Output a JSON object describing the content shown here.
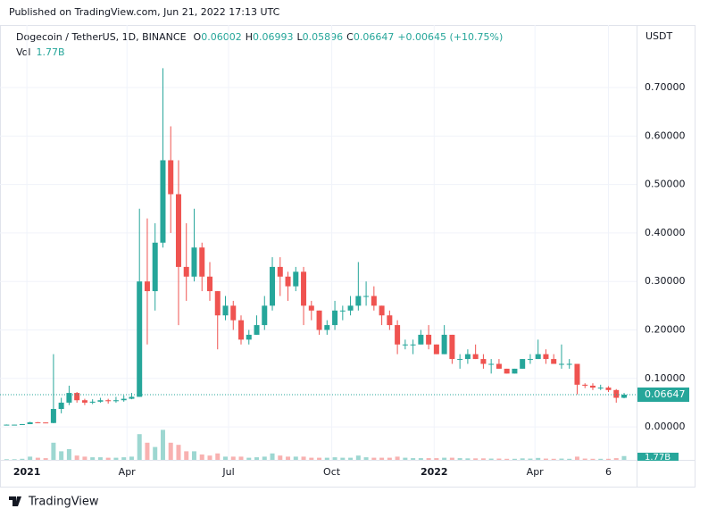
{
  "chart_data": {
    "type": "candlestick",
    "published": "Published on TradingView.com, Jun 21, 2022 17:13 UTC",
    "symbol": "Dogecoin / TetherUS, 1D, BINANCE",
    "ohlc_header": [
      {
        "label": "O",
        "value": 0.06002
      },
      {
        "label": "H",
        "value": 0.06993
      },
      {
        "label": "L",
        "value": 0.05896
      },
      {
        "label": "C",
        "value": 0.06647
      }
    ],
    "change_label": "+0.00645 (+10.75%)",
    "volume_title": "Vol",
    "volume_header": {
      "value": 1.77,
      "label": "1.77B"
    },
    "currency": "USDT",
    "brand": "TradingView",
    "last_price": 0.06647,
    "up_color": "#26a69a",
    "down_color": "#ef5350",
    "grid": true,
    "open": [
      0.0045,
      0.0046,
      0.0046,
      0.0057,
      0.0095,
      0.0091,
      0.008,
      0.037,
      0.05,
      0.07,
      0.055,
      0.05,
      0.052,
      0.055,
      0.053,
      0.055,
      0.058,
      0.062,
      0.3,
      0.28,
      0.38,
      0.55,
      0.48,
      0.33,
      0.31,
      0.37,
      0.31,
      0.28,
      0.23,
      0.25,
      0.22,
      0.18,
      0.19,
      0.21,
      0.25,
      0.33,
      0.31,
      0.29,
      0.32,
      0.25,
      0.24,
      0.2,
      0.21,
      0.24,
      0.24,
      0.25,
      0.27,
      0.27,
      0.25,
      0.23,
      0.21,
      0.17,
      0.17,
      0.17,
      0.19,
      0.17,
      0.15,
      0.19,
      0.14,
      0.14,
      0.15,
      0.14,
      0.13,
      0.13,
      0.12,
      0.11,
      0.12,
      0.14,
      0.14,
      0.15,
      0.14,
      0.13,
      0.13,
      0.13,
      0.087,
      0.085,
      0.081,
      0.081,
      0.076,
      0.06
    ],
    "high": [
      0.005,
      0.0048,
      0.006,
      0.0105,
      0.01,
      0.0092,
      0.15,
      0.06,
      0.085,
      0.072,
      0.058,
      0.057,
      0.06,
      0.058,
      0.062,
      0.065,
      0.07,
      0.45,
      0.43,
      0.42,
      0.74,
      0.62,
      0.55,
      0.42,
      0.45,
      0.38,
      0.34,
      0.28,
      0.27,
      0.26,
      0.23,
      0.2,
      0.23,
      0.27,
      0.35,
      0.35,
      0.32,
      0.33,
      0.33,
      0.26,
      0.24,
      0.22,
      0.26,
      0.25,
      0.27,
      0.34,
      0.3,
      0.29,
      0.25,
      0.24,
      0.22,
      0.18,
      0.18,
      0.2,
      0.21,
      0.17,
      0.21,
      0.19,
      0.15,
      0.16,
      0.17,
      0.15,
      0.14,
      0.14,
      0.12,
      0.12,
      0.14,
      0.15,
      0.18,
      0.16,
      0.15,
      0.17,
      0.14,
      0.13,
      0.09,
      0.09,
      0.087,
      0.084,
      0.078,
      0.06993
    ],
    "low": [
      0.0043,
      0.0044,
      0.0045,
      0.0056,
      0.0082,
      0.0075,
      0.0075,
      0.028,
      0.045,
      0.05,
      0.045,
      0.047,
      0.05,
      0.048,
      0.05,
      0.052,
      0.057,
      0.062,
      0.17,
      0.24,
      0.37,
      0.4,
      0.21,
      0.26,
      0.3,
      0.28,
      0.26,
      0.16,
      0.22,
      0.2,
      0.17,
      0.17,
      0.19,
      0.2,
      0.24,
      0.27,
      0.26,
      0.28,
      0.21,
      0.22,
      0.19,
      0.19,
      0.2,
      0.22,
      0.23,
      0.24,
      0.25,
      0.24,
      0.21,
      0.2,
      0.15,
      0.16,
      0.15,
      0.17,
      0.16,
      0.15,
      0.15,
      0.13,
      0.12,
      0.13,
      0.14,
      0.12,
      0.11,
      0.12,
      0.11,
      0.11,
      0.12,
      0.13,
      0.14,
      0.13,
      0.13,
      0.12,
      0.12,
      0.067,
      0.08,
      0.076,
      0.076,
      0.072,
      0.05,
      0.05896
    ],
    "close": [
      0.0046,
      0.0046,
      0.0057,
      0.0095,
      0.0091,
      0.008,
      0.037,
      0.05,
      0.07,
      0.055,
      0.05,
      0.052,
      0.055,
      0.053,
      0.055,
      0.058,
      0.062,
      0.3,
      0.28,
      0.38,
      0.55,
      0.48,
      0.33,
      0.31,
      0.37,
      0.31,
      0.28,
      0.23,
      0.25,
      0.22,
      0.18,
      0.19,
      0.21,
      0.25,
      0.33,
      0.31,
      0.29,
      0.32,
      0.25,
      0.24,
      0.2,
      0.21,
      0.24,
      0.24,
      0.25,
      0.27,
      0.27,
      0.25,
      0.23,
      0.21,
      0.17,
      0.17,
      0.17,
      0.19,
      0.17,
      0.15,
      0.19,
      0.14,
      0.14,
      0.15,
      0.14,
      0.13,
      0.13,
      0.12,
      0.11,
      0.12,
      0.14,
      0.14,
      0.15,
      0.14,
      0.13,
      0.13,
      0.13,
      0.087,
      0.085,
      0.081,
      0.081,
      0.076,
      0.06,
      0.06647
    ],
    "volume": [
      0.3,
      0.3,
      0.5,
      1.5,
      1,
      0.8,
      8,
      4,
      5,
      2,
      1.5,
      1.2,
      1.2,
      1,
      1,
      1.2,
      1.5,
      12,
      8,
      6,
      14,
      8,
      7,
      4,
      4,
      2.5,
      2,
      3,
      1.5,
      1.5,
      1.5,
      1,
      1.2,
      1.5,
      3,
      2,
      1.5,
      1.5,
      1.5,
      1,
      1,
      1,
      1.2,
      1,
      1,
      2,
      1.2,
      1,
      1,
      1,
      1.5,
      1,
      0.8,
      0.8,
      0.8,
      0.8,
      1,
      1,
      0.8,
      0.7,
      0.7,
      0.7,
      0.6,
      0.6,
      0.5,
      0.5,
      0.7,
      0.6,
      0.9,
      0.6,
      0.5,
      0.6,
      0.5,
      1.5,
      0.6,
      0.5,
      0.5,
      0.5,
      0.8,
      1.77
    ],
    "volume_ylim": [
      0,
      25
    ],
    "xlim": [
      0.3,
      80.6
    ],
    "xticks": [
      {
        "value": 2.6,
        "label": "2021",
        "bold": true
      },
      {
        "value": 15.4,
        "label": "Apr"
      },
      {
        "value": 28.4,
        "label": "Jul"
      },
      {
        "value": 41.6,
        "label": "Oct"
      },
      {
        "value": 54.7,
        "label": "2022",
        "bold": true
      },
      {
        "value": 67.6,
        "label": "Apr"
      },
      {
        "value": 77.0,
        "label": "6"
      }
    ],
    "ylim": [
      -0.068,
      0.829
    ],
    "yticks": [
      {
        "value": 0,
        "label": "0.00000"
      },
      {
        "value": 0.1,
        "label": "0.10000"
      },
      {
        "value": 0.2,
        "label": "0.20000"
      },
      {
        "value": 0.3,
        "label": "0.30000"
      },
      {
        "value": 0.4,
        "label": "0.40000"
      },
      {
        "value": 0.5,
        "label": "0.50000"
      },
      {
        "value": 0.6,
        "label": "0.60000"
      },
      {
        "value": 0.7,
        "label": "0.70000"
      }
    ]
  }
}
